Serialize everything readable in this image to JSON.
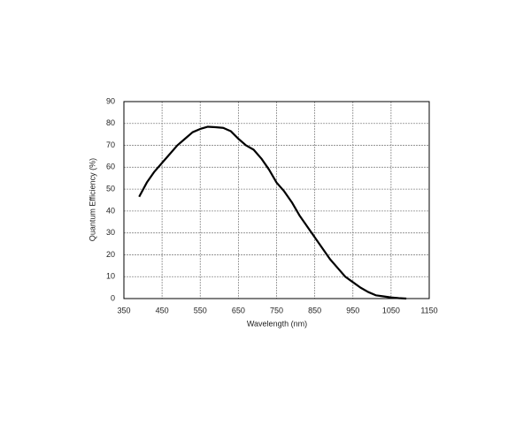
{
  "chart_data": {
    "type": "line",
    "x_label": "Wavelength (nm)",
    "y_label": "Quantum Efficiency (%)",
    "x": [
      390,
      410,
      430,
      450,
      470,
      490,
      510,
      530,
      550,
      570,
      590,
      610,
      630,
      650,
      670,
      690,
      710,
      730,
      750,
      770,
      790,
      810,
      830,
      850,
      870,
      890,
      910,
      930,
      950,
      970,
      990,
      1010,
      1030,
      1050,
      1070,
      1090
    ],
    "series": [
      {
        "color": "#000000",
        "values": [
          46.5,
          53,
          58,
          62,
          66,
          70,
          73,
          76,
          77.5,
          78.5,
          78.3,
          78,
          76.5,
          73,
          70,
          68,
          64,
          59,
          53,
          49,
          44,
          38,
          33,
          28,
          23,
          18,
          14,
          10,
          7.5,
          5,
          3,
          1.5,
          1,
          0.5,
          0.2,
          0
        ]
      }
    ],
    "xlim": [
      350,
      1150
    ],
    "xticks": [
      350,
      450,
      550,
      650,
      750,
      850,
      950,
      1050,
      1150
    ],
    "ylim": [
      0,
      90
    ],
    "yticks": [
      0,
      10,
      20,
      30,
      40,
      50,
      60,
      70,
      80,
      90
    ],
    "grid": true
  }
}
